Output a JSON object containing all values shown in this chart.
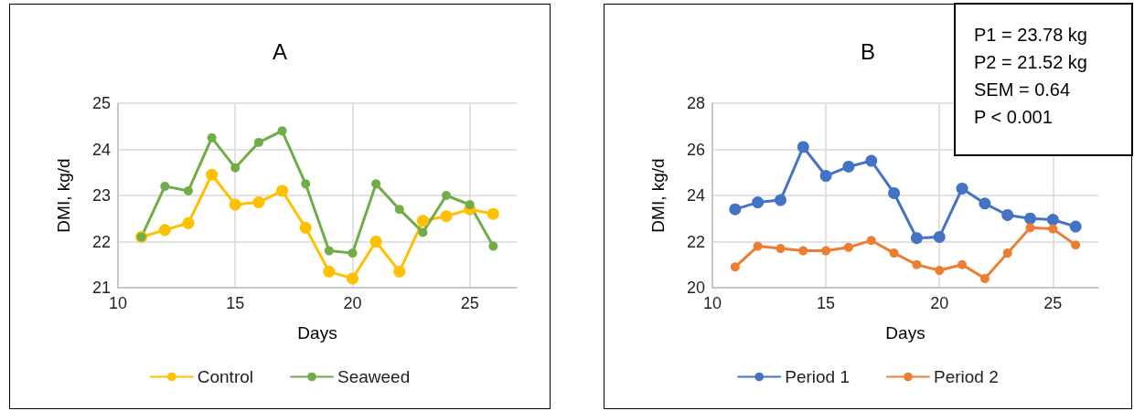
{
  "chart_data": [
    {
      "type": "line",
      "title": "A",
      "xlabel": "Days",
      "ylabel": "DMI, kg/d",
      "x": [
        11,
        12,
        13,
        14,
        15,
        16,
        17,
        18,
        19,
        20,
        21,
        22,
        23,
        24,
        25,
        26
      ],
      "xlim": [
        10,
        27
      ],
      "xticks": [
        10,
        15,
        20,
        25
      ],
      "ylim": [
        21,
        25
      ],
      "yticks": [
        21,
        22,
        23,
        24,
        25
      ],
      "grid": true,
      "legend": "bottom",
      "marker": "circle",
      "line_style": "solid",
      "series": [
        {
          "name": "Control",
          "color": "#ffc000",
          "values": [
            22.1,
            22.25,
            22.4,
            23.45,
            22.8,
            22.85,
            23.1,
            22.3,
            21.35,
            21.2,
            22.0,
            21.35,
            22.45,
            22.55,
            22.7,
            22.6
          ]
        },
        {
          "name": "Seaweed",
          "color": "#70ad47",
          "values": [
            22.1,
            23.2,
            23.1,
            24.25,
            23.6,
            24.15,
            24.4,
            23.25,
            21.8,
            21.75,
            23.25,
            22.7,
            22.2,
            23.0,
            22.8,
            21.9
          ]
        }
      ]
    },
    {
      "type": "line",
      "title": "B",
      "xlabel": "Days",
      "ylabel": "DMI, kg/d",
      "x": [
        11,
        12,
        13,
        14,
        15,
        16,
        17,
        18,
        19,
        20,
        21,
        22,
        23,
        24,
        25,
        26
      ],
      "xlim": [
        10,
        27
      ],
      "xticks": [
        10,
        15,
        20,
        25
      ],
      "ylim": [
        20,
        28
      ],
      "yticks": [
        20,
        22,
        24,
        26,
        28
      ],
      "grid": true,
      "legend": "bottom",
      "marker": "circle",
      "line_style": "solid",
      "annotations": [
        "P1 = 23.78 kg",
        "P2 = 21.52 kg",
        "SEM = 0.64",
        "P < 0.001"
      ],
      "series": [
        {
          "name": "Period 1",
          "color": "#4472c4",
          "values": [
            23.4,
            23.7,
            23.8,
            26.1,
            24.85,
            25.25,
            25.5,
            24.1,
            22.15,
            22.2,
            24.3,
            23.65,
            23.15,
            23.0,
            22.95,
            22.65
          ]
        },
        {
          "name": "Period 2",
          "color": "#ed7d31",
          "values": [
            20.9,
            21.8,
            21.7,
            21.6,
            21.6,
            21.75,
            22.05,
            21.5,
            21.0,
            20.75,
            21.0,
            20.4,
            21.5,
            22.6,
            22.55,
            21.85
          ]
        }
      ]
    }
  ]
}
